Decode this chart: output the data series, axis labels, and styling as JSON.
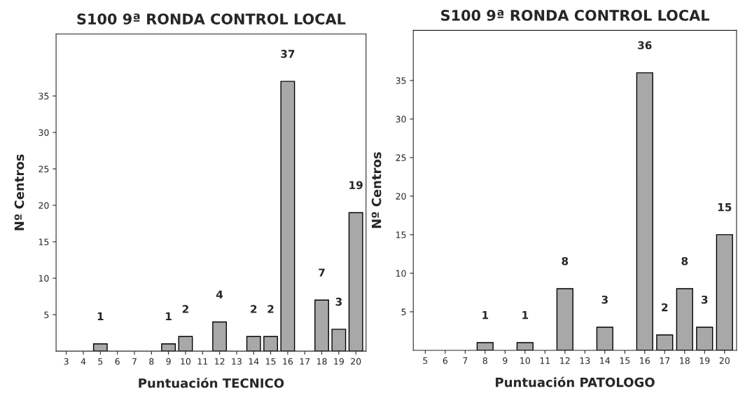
{
  "chart_data": [
    {
      "type": "bar",
      "title": "S100 9ª RONDA CONTROL LOCAL",
      "xlabel": "Puntuación TECNICO",
      "ylabel": "Nº Centros",
      "color": "#a8a8a8",
      "categories": [
        "3",
        "4",
        "5",
        "6",
        "7",
        "8",
        "9",
        "10",
        "11",
        "12",
        "13",
        "14",
        "15",
        "16",
        "17",
        "18",
        "19",
        "20"
      ],
      "values": [
        0,
        0,
        1,
        0,
        0,
        0,
        1,
        2,
        0,
        4,
        0,
        2,
        2,
        37,
        0,
        7,
        3,
        19
      ],
      "value_labels": [
        null,
        null,
        "1",
        null,
        null,
        null,
        "1",
        "2",
        null,
        "4",
        null,
        "2",
        "2",
        "37",
        null,
        "7",
        "3",
        "19"
      ],
      "ylim": [
        0,
        43.5
      ],
      "yticks": [
        5,
        10,
        15,
        20,
        25,
        30,
        35
      ],
      "grid": false,
      "legend": false
    },
    {
      "type": "bar",
      "title": "S100 9ª RONDA CONTROL LOCAL",
      "xlabel": "Puntuación PATOLOGO",
      "ylabel": "Nº Centros",
      "color": "#a8a8a8",
      "categories": [
        "5",
        "6",
        "7",
        "8",
        "9",
        "10",
        "11",
        "12",
        "13",
        "14",
        "15",
        "16",
        "17",
        "18",
        "19",
        "20"
      ],
      "values": [
        0,
        0,
        0,
        1,
        0,
        1,
        0,
        8,
        0,
        3,
        0,
        36,
        2,
        8,
        3,
        15
      ],
      "value_labels": [
        null,
        null,
        null,
        "1",
        null,
        "1",
        null,
        "8",
        null,
        "3",
        null,
        "36",
        "2",
        "8",
        "3",
        "15"
      ],
      "ylim": [
        0,
        41.5
      ],
      "yticks": [
        5,
        10,
        15,
        20,
        25,
        30,
        35
      ],
      "grid": false,
      "legend": false
    }
  ]
}
